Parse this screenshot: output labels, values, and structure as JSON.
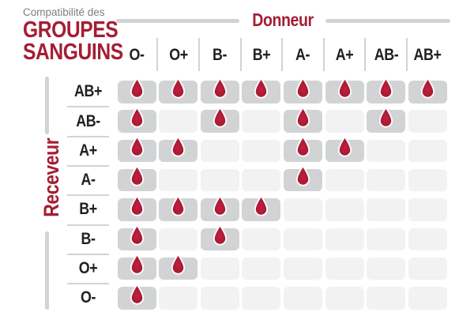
{
  "brand": {
    "subtitle": "Compatibilité des",
    "title_line1": "GROUPES",
    "title_line2": "SANGUINS"
  },
  "chart_data": {
    "type": "heatmap",
    "title": "Compatibilité des GROUPES SANGUINS",
    "x_label": "Donneur",
    "y_label": "Receveur",
    "columns": [
      "O-",
      "O+",
      "B-",
      "B+",
      "A-",
      "A+",
      "AB-",
      "AB+"
    ],
    "rows": [
      "AB+",
      "AB-",
      "A+",
      "A-",
      "B+",
      "B-",
      "O+",
      "O-"
    ],
    "matrix": [
      [
        1,
        1,
        1,
        1,
        1,
        1,
        1,
        1
      ],
      [
        1,
        0,
        1,
        0,
        1,
        0,
        1,
        0
      ],
      [
        1,
        1,
        0,
        0,
        1,
        1,
        0,
        0
      ],
      [
        1,
        0,
        0,
        0,
        1,
        0,
        0,
        0
      ],
      [
        1,
        1,
        1,
        1,
        0,
        0,
        0,
        0
      ],
      [
        1,
        0,
        1,
        0,
        0,
        0,
        0,
        0
      ],
      [
        1,
        1,
        0,
        0,
        0,
        0,
        0,
        0
      ],
      [
        1,
        0,
        0,
        0,
        0,
        0,
        0,
        0
      ]
    ],
    "value_legend": "1 = compatible (blood drop shown), 0 = not compatible (empty cell)"
  },
  "icons": {
    "compatible": "blood-drop-icon"
  },
  "colors": {
    "accent_red": "#a41e33",
    "cell_compatible": "#d2d3d4",
    "cell_incompatible": "#f2f2f2",
    "divider": "#d1d3d4",
    "header_text": "#232021",
    "subtitle_gray": "#7b7e82",
    "drop_center": "#c0203e",
    "drop_edge": "#991730",
    "drop_outline": "#ffffff"
  }
}
